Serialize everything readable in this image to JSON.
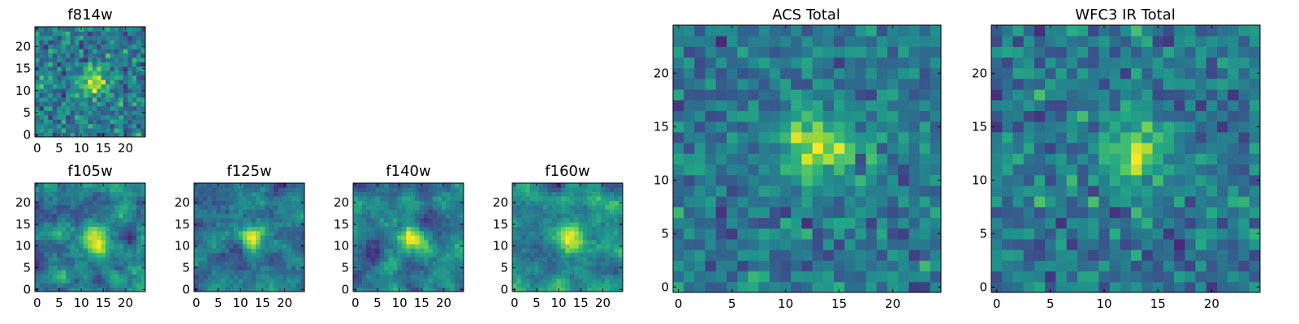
{
  "chart_data": [
    {
      "type": "heatmap",
      "title": "f814w",
      "x_ticks": [
        "0",
        "5",
        "10",
        "15",
        "20"
      ],
      "y_ticks": [
        "0",
        "5",
        "10",
        "15",
        "20"
      ],
      "xlim": [
        -0.5,
        24.5
      ],
      "ylim": [
        -0.5,
        24.5
      ],
      "peak": [
        13,
        12
      ],
      "texture": "noisy",
      "colormap": "viridis"
    },
    {
      "type": "heatmap",
      "title": "f105w",
      "x_ticks": [
        "0",
        "5",
        "10",
        "15",
        "20"
      ],
      "y_ticks": [
        "0",
        "5",
        "10",
        "15",
        "20"
      ],
      "xlim": [
        -0.5,
        24.5
      ],
      "ylim": [
        -0.5,
        24.5
      ],
      "peak": [
        13,
        12
      ],
      "texture": "smooth",
      "colormap": "viridis"
    },
    {
      "type": "heatmap",
      "title": "f125w",
      "x_ticks": [
        "0",
        "5",
        "10",
        "15",
        "20"
      ],
      "y_ticks": [
        "0",
        "5",
        "10",
        "15",
        "20"
      ],
      "xlim": [
        -0.5,
        24.5
      ],
      "ylim": [
        -0.5,
        24.5
      ],
      "peak": [
        13,
        12
      ],
      "texture": "smooth",
      "colormap": "viridis"
    },
    {
      "type": "heatmap",
      "title": "f140w",
      "x_ticks": [
        "0",
        "5",
        "10",
        "15",
        "20"
      ],
      "y_ticks": [
        "0",
        "5",
        "10",
        "15",
        "20"
      ],
      "xlim": [
        -0.5,
        24.5
      ],
      "ylim": [
        -0.5,
        24.5
      ],
      "peak": [
        13,
        12
      ],
      "texture": "smooth",
      "colormap": "viridis"
    },
    {
      "type": "heatmap",
      "title": "f160w",
      "x_ticks": [
        "0",
        "5",
        "10",
        "15",
        "20"
      ],
      "y_ticks": [
        "0",
        "5",
        "10",
        "15",
        "20"
      ],
      "xlim": [
        -0.5,
        24.5
      ],
      "ylim": [
        -0.5,
        24.5
      ],
      "peak": [
        13,
        12
      ],
      "texture": "smooth",
      "colormap": "viridis"
    },
    {
      "type": "heatmap",
      "title": "ACS Total",
      "x_ticks": [
        "0",
        "5",
        "10",
        "15",
        "20"
      ],
      "y_ticks": [
        "0",
        "5",
        "10",
        "15",
        "20"
      ],
      "xlim": [
        -0.5,
        24.5
      ],
      "ylim": [
        -0.5,
        24.5
      ],
      "peak": [
        13,
        13
      ],
      "texture": "noisy",
      "colormap": "viridis"
    },
    {
      "type": "heatmap",
      "title": "WFC3 IR Total",
      "x_ticks": [
        "0",
        "5",
        "10",
        "15",
        "20"
      ],
      "y_ticks": [
        "0",
        "5",
        "10",
        "15",
        "20"
      ],
      "xlim": [
        -0.5,
        24.5
      ],
      "ylim": [
        -0.5,
        24.5
      ],
      "peak": [
        13,
        13
      ],
      "texture": "noisy",
      "colormap": "viridis"
    }
  ]
}
